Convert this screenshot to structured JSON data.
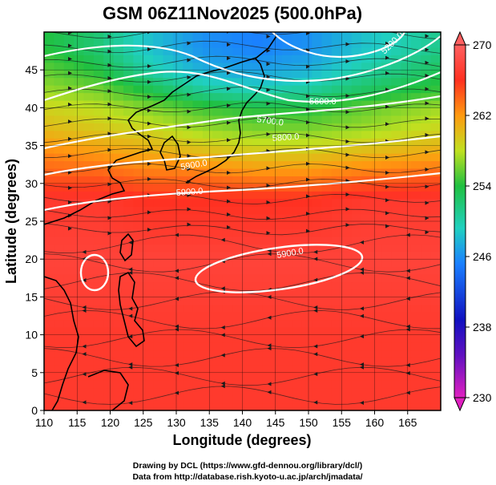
{
  "chart_data": {
    "type": "heatmap",
    "title": "GSM 06Z11Nov2025 (500.0hPa)",
    "xlabel": "Longitude (degrees)",
    "ylabel": "Latitude  (degrees)",
    "xlim": [
      110,
      170
    ],
    "ylim": [
      0,
      50
    ],
    "xticks": [
      110,
      115,
      120,
      125,
      130,
      135,
      140,
      145,
      150,
      155,
      160,
      165
    ],
    "yticks": [
      0,
      5,
      10,
      15,
      20,
      25,
      30,
      35,
      40,
      45
    ],
    "colorbar": {
      "ticks": [
        230,
        238,
        246,
        254,
        262,
        270
      ],
      "range": [
        230,
        270
      ],
      "colors": [
        "#e020c0",
        "#1010c0",
        "#1a80ff",
        "#20d0c0",
        "#20c040",
        "#c0e020",
        "#ff9a10",
        "#ff3020",
        "#ff6060"
      ]
    },
    "temperature_field_K": {
      "lat_rows": [
        48,
        45,
        42,
        40,
        37,
        34,
        31,
        28,
        20,
        10,
        2
      ],
      "values_by_row": [
        [
          250,
          248,
          244,
          241,
          240,
          241,
          244,
          247
        ],
        [
          252,
          250,
          246,
          243,
          242,
          243,
          246,
          249
        ],
        [
          254,
          253,
          250,
          247,
          246,
          247,
          249,
          251
        ],
        [
          256,
          255,
          253,
          251,
          250,
          250,
          252,
          254
        ],
        [
          258,
          257,
          256,
          254,
          253,
          253,
          254,
          256
        ],
        [
          261,
          260,
          259,
          258,
          257,
          257,
          258,
          259
        ],
        [
          263,
          263,
          262,
          262,
          261,
          261,
          262,
          263
        ],
        [
          266,
          266,
          265,
          265,
          265,
          265,
          266,
          266
        ],
        [
          267,
          267,
          267,
          267,
          267,
          267,
          267,
          267
        ],
        [
          266,
          266,
          266,
          266,
          266,
          266,
          266,
          266
        ],
        [
          266,
          266,
          266,
          266,
          266,
          266,
          266,
          266
        ]
      ],
      "lon_cols": [
        110,
        118,
        126,
        134,
        142,
        150,
        158,
        170
      ]
    },
    "contour_labels": [
      "5200.0",
      "5600.0",
      "5700.0",
      "5800.0",
      "5900.0",
      "5900.0",
      "5900.0"
    ],
    "contours_m": [
      5200,
      5400,
      5600,
      5700,
      5800,
      5900
    ]
  },
  "footer": {
    "line1": "Drawing by DCL (https://www.gfd-dennou.org/library/dcl/)",
    "line2": "Data from http://database.rish.kyoto-u.ac.jp/arch/jmadata/"
  }
}
